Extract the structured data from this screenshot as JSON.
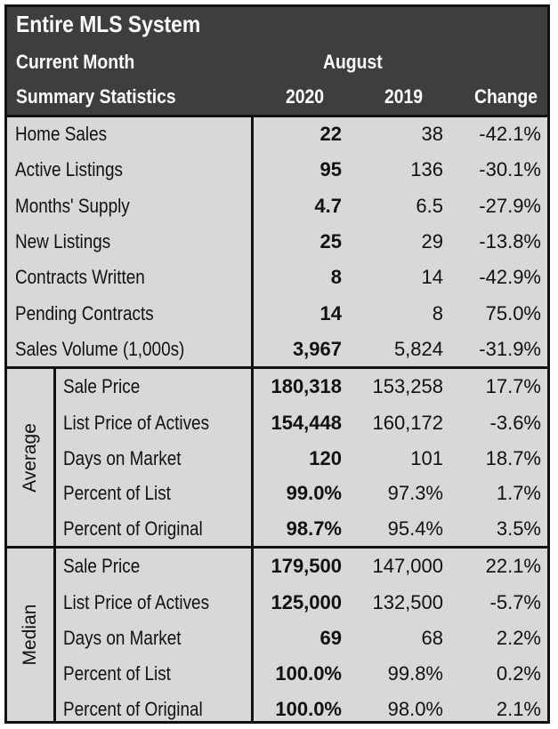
{
  "header": {
    "title": "Entire MLS System",
    "period_label": "Current Month",
    "month": "August",
    "section_label": "Summary Statistics",
    "col_2020": "2020",
    "col_2019": "2019",
    "col_change": "Change"
  },
  "summary_rows": [
    {
      "label": "Home Sales",
      "y2020": "22",
      "y2019": "38",
      "change": "-42.1%"
    },
    {
      "label": "Active Listings",
      "y2020": "95",
      "y2019": "136",
      "change": "-30.1%"
    },
    {
      "label": "Months' Supply",
      "y2020": "4.7",
      "y2019": "6.5",
      "change": "-27.9%"
    },
    {
      "label": "New Listings",
      "y2020": "25",
      "y2019": "29",
      "change": "-13.8%"
    },
    {
      "label": "Contracts Written",
      "y2020": "8",
      "y2019": "14",
      "change": "-42.9%"
    },
    {
      "label": "Pending Contracts",
      "y2020": "14",
      "y2019": "8",
      "change": "75.0%"
    },
    {
      "label": "Sales Volume (1,000s)",
      "y2020": "3,967",
      "y2019": "5,824",
      "change": "-31.9%"
    }
  ],
  "average": {
    "label": "Average",
    "rows": [
      {
        "label": "Sale Price",
        "y2020": "180,318",
        "y2019": "153,258",
        "change": "17.7%"
      },
      {
        "label": "List Price of Actives",
        "y2020": "154,448",
        "y2019": "160,172",
        "change": "-3.6%"
      },
      {
        "label": "Days on Market",
        "y2020": "120",
        "y2019": "101",
        "change": "18.7%"
      },
      {
        "label": "Percent of List",
        "y2020": "99.0%",
        "y2019": "97.3%",
        "change": "1.7%"
      },
      {
        "label": "Percent of Original",
        "y2020": "98.7%",
        "y2019": "95.4%",
        "change": "3.5%"
      }
    ]
  },
  "median": {
    "label": "Median",
    "rows": [
      {
        "label": "Sale Price",
        "y2020": "179,500",
        "y2019": "147,000",
        "change": "22.1%"
      },
      {
        "label": "List Price of Actives",
        "y2020": "125,000",
        "y2019": "132,500",
        "change": "-5.7%"
      },
      {
        "label": "Days on Market",
        "y2020": "69",
        "y2019": "68",
        "change": "2.2%"
      },
      {
        "label": "Percent of List",
        "y2020": "100.0%",
        "y2019": "99.8%",
        "change": "0.2%"
      },
      {
        "label": "Percent of Original",
        "y2020": "100.0%",
        "y2019": "98.0%",
        "change": "2.1%"
      }
    ]
  }
}
